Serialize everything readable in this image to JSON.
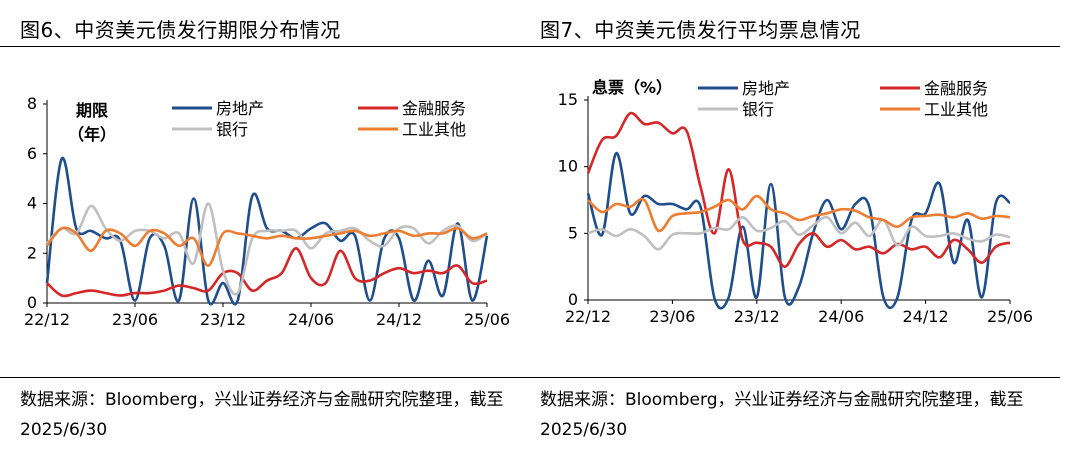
{
  "charts_meta": {
    "left_title": "图6、中资美元债发行期限分布情况",
    "right_title": "图7、中资美元债发行平均票息情况",
    "source": "数据来源：Bloomberg，兴业证券经济与金融研究院整理，截至2025/6/30"
  },
  "chart_data": [
    {
      "type": "line",
      "title": "图6、中资美元债发行期限分布情况",
      "ylabel_line1": "期限",
      "ylabel_line2": "（年）",
      "ylim": [
        0,
        8
      ],
      "yticks": [
        "0",
        "2",
        "4",
        "6",
        "8"
      ],
      "xticks": [
        "22/12",
        "23/06",
        "23/12",
        "24/06",
        "24/12",
        "25/06"
      ],
      "x": [
        "22/12",
        "23/01",
        "23/02",
        "23/03",
        "23/04",
        "23/05",
        "23/06",
        "23/07",
        "23/08",
        "23/09",
        "23/10",
        "23/11",
        "23/12",
        "24/01",
        "24/02",
        "24/03",
        "24/04",
        "24/05",
        "24/06",
        "24/07",
        "24/08",
        "24/09",
        "24/10",
        "24/11",
        "24/12",
        "25/01",
        "25/02",
        "25/03",
        "25/04",
        "25/05",
        "25/06"
      ],
      "grid": false,
      "legend": "top",
      "series": [
        {
          "name": "房地产",
          "color": "#1f4e8c",
          "values": [
            0.8,
            5.8,
            3.0,
            2.9,
            2.6,
            2.5,
            0.1,
            2.6,
            2.3,
            0.1,
            4.2,
            0.1,
            0.8,
            0.1,
            4.3,
            3.0,
            2.9,
            2.6,
            3.0,
            3.2,
            2.5,
            2.7,
            0.1,
            2.6,
            2.6,
            0.1,
            1.7,
            0.3,
            3.2,
            0.1,
            2.7
          ]
        },
        {
          "name": "金融服务",
          "color": "#d62728",
          "values": [
            0.8,
            0.3,
            0.4,
            0.5,
            0.4,
            0.3,
            0.4,
            0.4,
            0.5,
            0.7,
            0.6,
            0.5,
            1.2,
            1.2,
            0.5,
            0.9,
            1.2,
            2.2,
            1.0,
            0.8,
            2.1,
            1.0,
            0.9,
            1.2,
            1.4,
            1.2,
            1.3,
            1.2,
            1.5,
            0.8,
            0.9
          ]
        },
        {
          "name": "银行",
          "color": "#c0c0c0",
          "values": [
            2.4,
            3.0,
            2.8,
            3.9,
            3.0,
            2.5,
            2.9,
            2.9,
            2.6,
            2.8,
            1.6,
            4.0,
            1.3,
            0.4,
            2.6,
            2.9,
            2.9,
            2.9,
            2.2,
            2.8,
            2.9,
            3.0,
            2.5,
            2.3,
            3.0,
            3.0,
            2.4,
            2.9,
            3.1,
            2.5,
            2.8
          ]
        },
        {
          "name": "工业其他",
          "color": "#ed7d31",
          "values": [
            2.3,
            3.0,
            2.8,
            2.1,
            2.9,
            2.8,
            2.3,
            2.9,
            2.8,
            2.3,
            2.6,
            1.5,
            2.8,
            2.8,
            2.7,
            2.6,
            2.7,
            2.6,
            2.6,
            2.7,
            2.8,
            2.9,
            2.7,
            2.8,
            2.9,
            2.7,
            2.8,
            2.8,
            3.0,
            2.6,
            2.8
          ]
        }
      ]
    },
    {
      "type": "line",
      "title": "图7、中资美元债发行平均票息情况",
      "ylabel": "息票（%）",
      "ylim": [
        0,
        15
      ],
      "yticks": [
        "0",
        "5",
        "10",
        "15"
      ],
      "xticks": [
        "22/12",
        "23/06",
        "23/12",
        "24/06",
        "24/12",
        "25/06"
      ],
      "x": [
        "22/12",
        "23/01",
        "23/02",
        "23/03",
        "23/04",
        "23/05",
        "23/06",
        "23/07",
        "23/08",
        "23/09",
        "23/10",
        "23/11",
        "23/12",
        "24/01",
        "24/02",
        "24/03",
        "24/04",
        "24/05",
        "24/06",
        "24/07",
        "24/08",
        "24/09",
        "24/10",
        "24/11",
        "24/12",
        "25/01",
        "25/02",
        "25/03",
        "25/04",
        "25/05",
        "25/06"
      ],
      "grid": false,
      "legend": "top",
      "series": [
        {
          "name": "房地产",
          "color": "#1f4e8c",
          "values": [
            8.0,
            4.9,
            11.0,
            6.5,
            7.8,
            7.2,
            7.2,
            6.8,
            7.0,
            0.1,
            0.2,
            5.5,
            0.2,
            8.7,
            0.2,
            1.0,
            5.0,
            7.5,
            5.3,
            7.2,
            7.0,
            0.2,
            0.2,
            6.0,
            6.5,
            8.7,
            2.8,
            6.0,
            0.2,
            7.3,
            7.3
          ]
        },
        {
          "name": "金融服务",
          "color": "#d62728",
          "values": [
            9.5,
            12.0,
            12.3,
            14.0,
            13.2,
            13.3,
            12.5,
            12.7,
            8.5,
            5.0,
            9.8,
            4.5,
            4.3,
            4.0,
            2.5,
            4.2,
            5.0,
            4.0,
            4.5,
            3.8,
            4.0,
            3.5,
            4.2,
            3.8,
            4.0,
            3.2,
            4.5,
            3.8,
            2.8,
            4.0,
            4.3
          ]
        },
        {
          "name": "银行",
          "color": "#c0c0c0",
          "values": [
            5.0,
            5.3,
            4.8,
            5.3,
            4.8,
            3.8,
            4.9,
            5.0,
            5.0,
            5.4,
            5.3,
            6.2,
            5.2,
            5.4,
            5.9,
            4.9,
            5.6,
            6.2,
            5.0,
            5.8,
            4.8,
            6.0,
            4.1,
            5.5,
            4.8,
            4.8,
            5.0,
            4.6,
            4.4,
            4.9,
            4.7
          ]
        },
        {
          "name": "工业其他",
          "color": "#ed7d31",
          "values": [
            7.5,
            6.6,
            7.2,
            7.0,
            7.5,
            5.2,
            6.3,
            6.5,
            6.6,
            7.0,
            7.5,
            6.8,
            7.8,
            6.8,
            6.5,
            6.0,
            6.3,
            6.5,
            6.8,
            6.7,
            6.2,
            6.0,
            5.5,
            6.2,
            6.3,
            6.4,
            6.2,
            6.5,
            6.1,
            6.3,
            6.2
          ]
        }
      ]
    }
  ]
}
